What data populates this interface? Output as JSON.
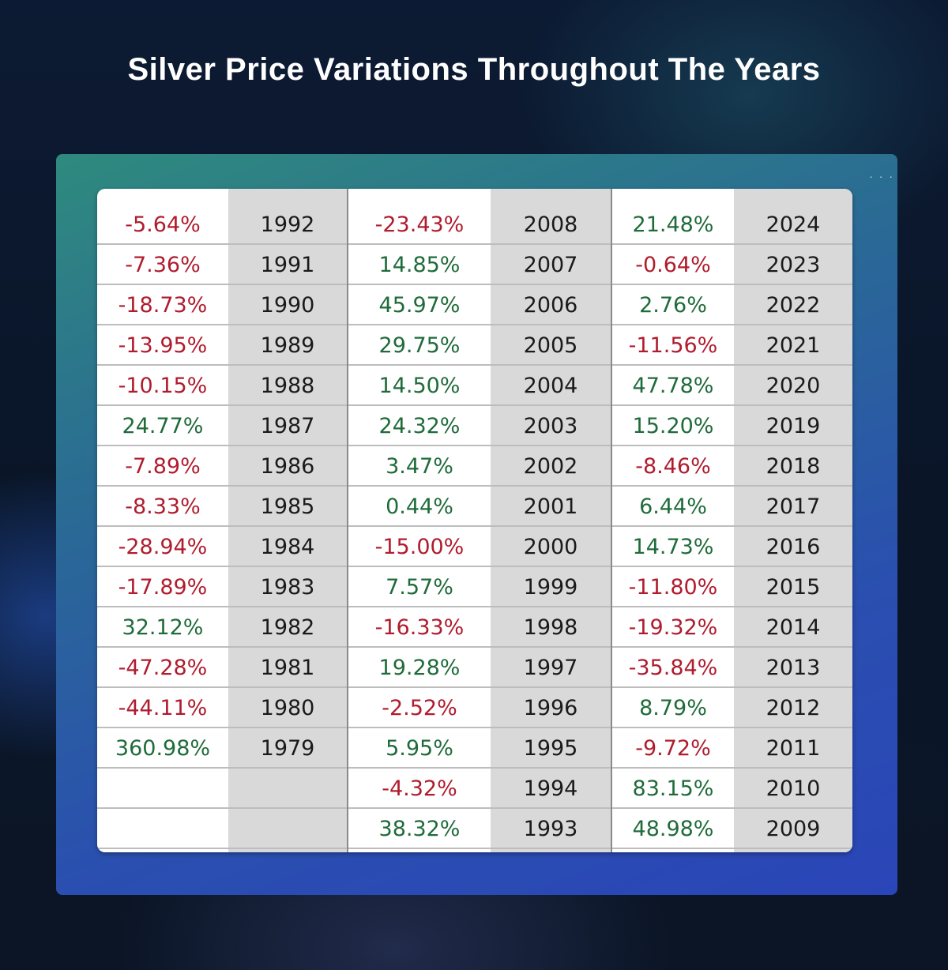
{
  "title": "Silver Price Variations Throughout The Years",
  "chart_data": {
    "type": "table",
    "title": "Silver Price Variations Throughout The Years",
    "colors": {
      "positive": "#1f6b3a",
      "negative": "#b01c2e"
    },
    "columns": [
      [
        {
          "change": "-5.64%",
          "year": "1992"
        },
        {
          "change": "-7.36%",
          "year": "1991"
        },
        {
          "change": "-18.73%",
          "year": "1990"
        },
        {
          "change": "-13.95%",
          "year": "1989"
        },
        {
          "change": "-10.15%",
          "year": "1988"
        },
        {
          "change": "24.77%",
          "year": "1987"
        },
        {
          "change": "-7.89%",
          "year": "1986"
        },
        {
          "change": "-8.33%",
          "year": "1985"
        },
        {
          "change": "-28.94%",
          "year": "1984"
        },
        {
          "change": "-17.89%",
          "year": "1983"
        },
        {
          "change": "32.12%",
          "year": "1982"
        },
        {
          "change": "-47.28%",
          "year": "1981"
        },
        {
          "change": "-44.11%",
          "year": "1980"
        },
        {
          "change": "360.98%",
          "year": "1979"
        },
        {
          "change": "",
          "year": ""
        },
        {
          "change": "",
          "year": ""
        }
      ],
      [
        {
          "change": "-23.43%",
          "year": "2008"
        },
        {
          "change": "14.85%",
          "year": "2007"
        },
        {
          "change": "45.97%",
          "year": "2006"
        },
        {
          "change": "29.75%",
          "year": "2005"
        },
        {
          "change": "14.50%",
          "year": "2004"
        },
        {
          "change": "24.32%",
          "year": "2003"
        },
        {
          "change": "3.47%",
          "year": "2002"
        },
        {
          "change": "0.44%",
          "year": "2001"
        },
        {
          "change": "-15.00%",
          "year": "2000"
        },
        {
          "change": "7.57%",
          "year": "1999"
        },
        {
          "change": "-16.33%",
          "year": "1998"
        },
        {
          "change": "19.28%",
          "year": "1997"
        },
        {
          "change": "-2.52%",
          "year": "1996"
        },
        {
          "change": "5.95%",
          "year": "1995"
        },
        {
          "change": "-4.32%",
          "year": "1994"
        },
        {
          "change": "38.32%",
          "year": "1993"
        }
      ],
      [
        {
          "change": "21.48%",
          "year": "2024"
        },
        {
          "change": "-0.64%",
          "year": "2023"
        },
        {
          "change": "2.76%",
          "year": "2022"
        },
        {
          "change": "-11.56%",
          "year": "2021"
        },
        {
          "change": "47.78%",
          "year": "2020"
        },
        {
          "change": "15.20%",
          "year": "2019"
        },
        {
          "change": "-8.46%",
          "year": "2018"
        },
        {
          "change": "6.44%",
          "year": "2017"
        },
        {
          "change": "14.73%",
          "year": "2016"
        },
        {
          "change": "-11.80%",
          "year": "2015"
        },
        {
          "change": "-19.32%",
          "year": "2014"
        },
        {
          "change": "-35.84%",
          "year": "2013"
        },
        {
          "change": "8.79%",
          "year": "2012"
        },
        {
          "change": "-9.72%",
          "year": "2011"
        },
        {
          "change": "83.15%",
          "year": "2010"
        },
        {
          "change": "48.98%",
          "year": "2009"
        }
      ]
    ]
  }
}
